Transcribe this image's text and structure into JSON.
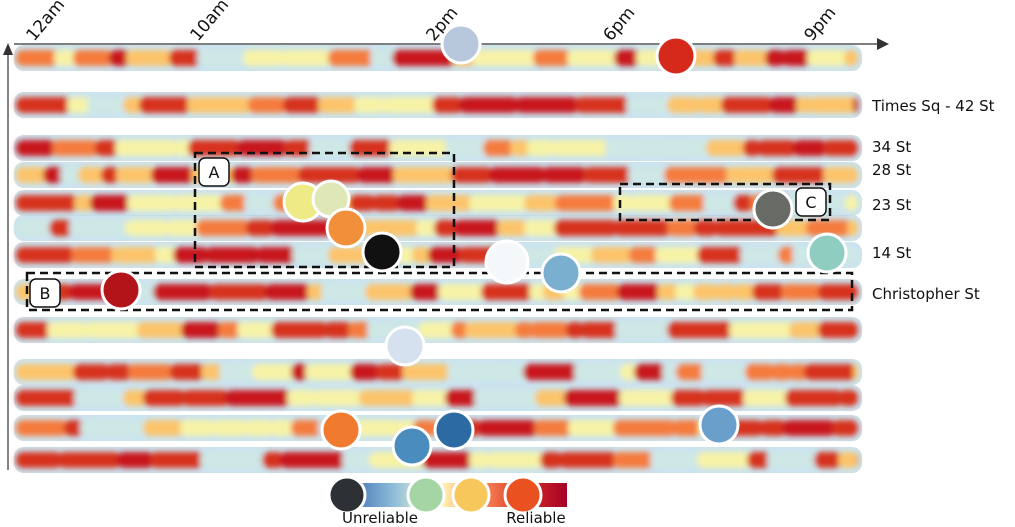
{
  "chart_data": {
    "type": "heatmap",
    "title": "",
    "x_ticks": [
      "12am",
      "10am",
      "2pm",
      "6pm",
      "9pm"
    ],
    "row_labels": [
      "Times Sq - 42 St",
      "34 St",
      "28 St",
      "23 St",
      "14 St",
      "Christopher St"
    ],
    "boxes": [
      {
        "label": "A"
      },
      {
        "label": "B"
      },
      {
        "label": "C"
      }
    ],
    "legend": {
      "low_label": "Unreliable",
      "high_label": "Reliable",
      "gradient_colors": [
        "#4575b4",
        "#91bfdb",
        "#ffffbf",
        "#fc8d59",
        "#d73027",
        "#a50026"
      ]
    },
    "markers": [
      {
        "color": "#b7c7dc"
      },
      {
        "color": "#d52a1b"
      },
      {
        "color": "#eeea86"
      },
      {
        "color": "#dfe7b7"
      },
      {
        "color": "#f28f3b"
      },
      {
        "color": "#111111"
      },
      {
        "color": "#f4f8fb"
      },
      {
        "color": "#7bafd0"
      },
      {
        "color": "#686a66"
      },
      {
        "color": "#8fcdc1"
      },
      {
        "color": "#b31419"
      },
      {
        "color": "#d5e1ee"
      },
      {
        "color": "#f07a2d"
      },
      {
        "color": "#4b8cbe"
      },
      {
        "color": "#2b6aa2"
      },
      {
        "color": "#6a9fcb"
      }
    ]
  }
}
